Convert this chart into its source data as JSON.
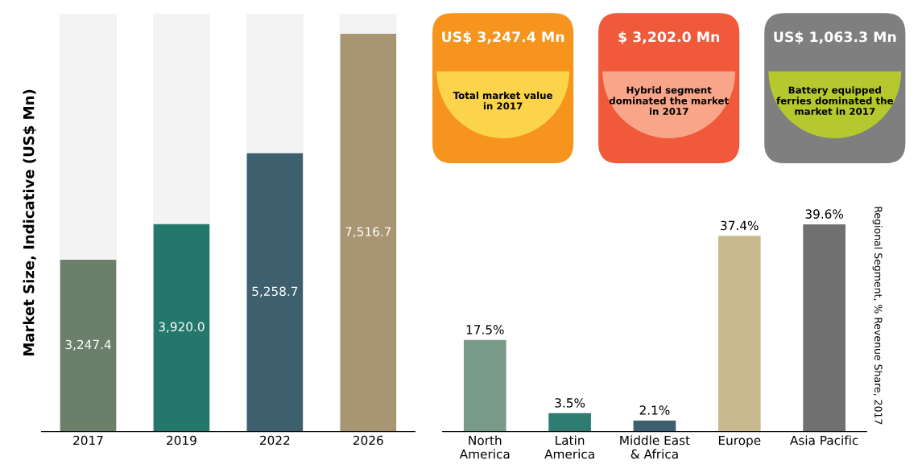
{
  "chart_data": [
    {
      "type": "bar",
      "ylabel": "Market Size, Indicative (US$ Mn)",
      "categories": [
        "2017",
        "2019",
        "2022",
        "2026"
      ],
      "values": [
        3247.4,
        3920.0,
        5258.7,
        7516.7
      ],
      "colors": [
        "#6b7f6a",
        "#24776b",
        "#3d5f6e",
        "#a89572"
      ],
      "value_labels": [
        "3,247.4",
        "3,920.0",
        "5,258.7",
        "7,516.7"
      ],
      "tick_labels": "x"
    },
    {
      "type": "other",
      "annotations": [
        "US$ 3,247.4 Mn",
        "Total market value\nin 2017",
        "$ 3,202.0 Mn",
        "Hybrid segment\ndominated the market\nin 2017",
        "US$ 1,063.3 Mn",
        "Battery equipped\nferries dominated the\nmarket in 2017"
      ]
    },
    {
      "type": "bar",
      "ylabel": "Regional Segment, % Revenue Share, 2017",
      "categories": [
        "North\nAmerica",
        "Latin\nAmerica",
        "Middle East\n& Africa",
        "Europe",
        "Asia Pacific"
      ],
      "values": [
        17.5,
        3.5,
        2.1,
        37.4,
        39.6
      ],
      "colors": [
        "#7a9a88",
        "#2f7d72",
        "#3d5f6e",
        "#c9b98f",
        "#707070"
      ],
      "value_labels": [
        "17.5%",
        "3.5%",
        "2.1%",
        "37.4%",
        "39.6%"
      ],
      "tick_labels": "x"
    }
  ]
}
